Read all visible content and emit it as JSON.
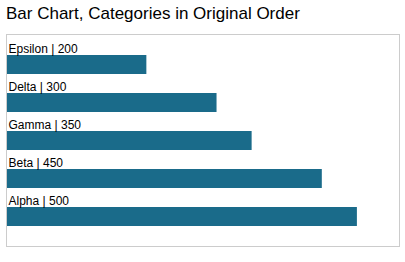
{
  "chart_data": {
    "type": "bar",
    "orientation": "horizontal",
    "title": "Bar Chart, Categories in Original Order",
    "categories": [
      "Epsilon",
      "Delta",
      "Gamma",
      "Beta",
      "Alpha"
    ],
    "values": [
      200,
      300,
      350,
      450,
      500
    ],
    "value_labels": [
      "Epsilon | 200",
      "Delta | 300",
      "Gamma | 350",
      "Beta | 450",
      "Alpha | 500"
    ],
    "data_labels": true,
    "color": "#1a6b8a",
    "xlim": [
      0,
      560
    ],
    "tick_labels": false,
    "grid": false
  }
}
